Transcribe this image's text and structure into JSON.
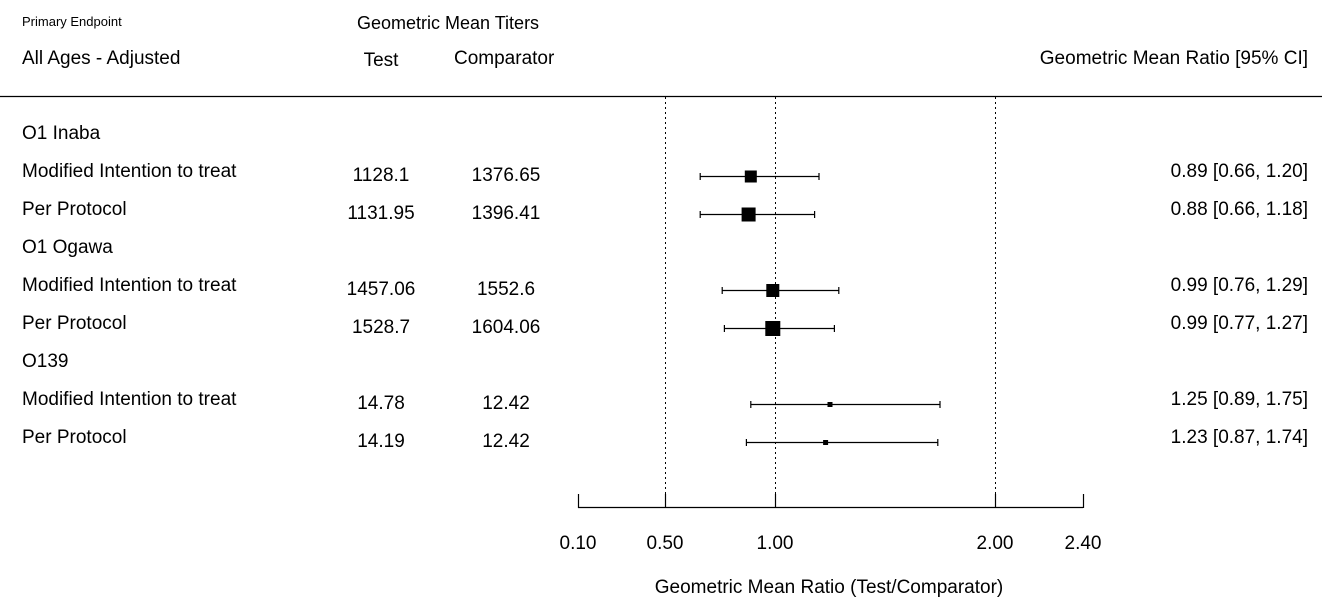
{
  "header": {
    "endpoint_label": "Primary Endpoint",
    "population_label": "All Ages - Adjusted",
    "gmt_label": "Geometric Mean Titers",
    "test_label": "Test",
    "comparator_label": "Comparator",
    "gmr_label": "Geometric Mean Ratio [95% CI]"
  },
  "rows": [
    {
      "kind": "group",
      "label": "O1 Inaba"
    },
    {
      "kind": "data",
      "label": "Modified Intention to treat",
      "test": "1128.1",
      "comparator": "1376.65",
      "est": 0.89,
      "lo": 0.66,
      "hi": 1.2,
      "ci_text": "0.89 [0.66, 1.20]",
      "weight": 12
    },
    {
      "kind": "data",
      "label": "Per Protocol",
      "test": "1131.95",
      "comparator": "1396.41",
      "est": 0.88,
      "lo": 0.66,
      "hi": 1.18,
      "ci_text": "0.88 [0.66, 1.18]",
      "weight": 14
    },
    {
      "kind": "group",
      "label": "O1 Ogawa"
    },
    {
      "kind": "data",
      "label": "Modified Intention to treat",
      "test": "1457.06",
      "comparator": "1552.6",
      "est": 0.99,
      "lo": 0.76,
      "hi": 1.29,
      "ci_text": "0.99 [0.76, 1.29]",
      "weight": 13
    },
    {
      "kind": "data",
      "label": "Per Protocol",
      "test": "1528.7",
      "comparator": "1604.06",
      "est": 0.99,
      "lo": 0.77,
      "hi": 1.27,
      "ci_text": "0.99 [0.77, 1.27]",
      "weight": 15
    },
    {
      "kind": "group",
      "label": "O139"
    },
    {
      "kind": "data",
      "label": "Modified Intention to treat",
      "test": "14.78",
      "comparator": "12.42",
      "est": 1.25,
      "lo": 0.89,
      "hi": 1.75,
      "ci_text": "1.25 [0.89, 1.75]",
      "weight": 5
    },
    {
      "kind": "data",
      "label": "Per Protocol",
      "test": "14.19",
      "comparator": "12.42",
      "est": 1.23,
      "lo": 0.87,
      "hi": 1.74,
      "ci_text": "1.23 [0.87, 1.74]",
      "weight": 5
    }
  ],
  "chart_data": {
    "type": "forest",
    "xlabel": "Geometric Mean Ratio (Test/Comparator)",
    "xlim": [
      0.1,
      2.4
    ],
    "ticks": [
      0.1,
      0.5,
      1.0,
      2.0,
      2.4
    ],
    "tick_labels": [
      "0.10",
      "0.50",
      "1.00",
      "2.00",
      "2.40"
    ],
    "reference_lines": [
      0.5,
      1.0,
      2.0
    ],
    "series": [
      {
        "group": "O1 Inaba",
        "population": "Modified Intention to treat",
        "est": 0.89,
        "lo": 0.66,
        "hi": 1.2
      },
      {
        "group": "O1 Inaba",
        "population": "Per Protocol",
        "est": 0.88,
        "lo": 0.66,
        "hi": 1.18
      },
      {
        "group": "O1 Ogawa",
        "population": "Modified Intention to treat",
        "est": 0.99,
        "lo": 0.76,
        "hi": 1.29
      },
      {
        "group": "O1 Ogawa",
        "population": "Per Protocol",
        "est": 0.99,
        "lo": 0.77,
        "hi": 1.27
      },
      {
        "group": "O139",
        "population": "Modified Intention to treat",
        "est": 1.25,
        "lo": 0.89,
        "hi": 1.75
      },
      {
        "group": "O139",
        "population": "Per Protocol",
        "est": 1.23,
        "lo": 0.87,
        "hi": 1.74
      }
    ]
  }
}
